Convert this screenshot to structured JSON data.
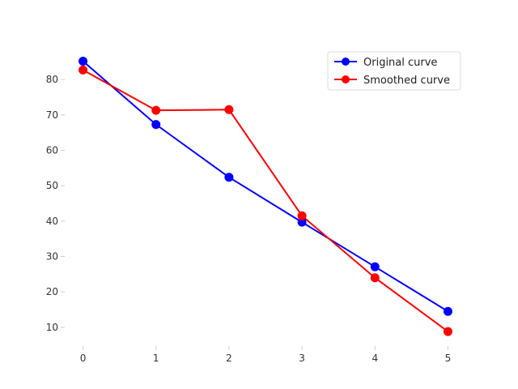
{
  "chart_data": {
    "type": "line",
    "x": [
      0,
      1,
      2,
      3,
      4,
      5
    ],
    "series": [
      {
        "name": "Original curve",
        "color": "#0000ff",
        "values": [
          85.2,
          67.3,
          52.4,
          39.7,
          27.1,
          14.5
        ]
      },
      {
        "name": "Smoothed curve",
        "color": "#ff0000",
        "values": [
          82.7,
          71.3,
          71.5,
          41.5,
          24.0,
          8.8
        ]
      }
    ],
    "xticks": [
      "0",
      "1",
      "2",
      "3",
      "4",
      "5"
    ],
    "yticks": [
      "10",
      "20",
      "30",
      "40",
      "50",
      "60",
      "70",
      "80"
    ],
    "xlim": [
      -0.25,
      5.25
    ],
    "ylim": [
      4.7,
      89.2
    ],
    "grid": false,
    "legend_position": "top-right"
  }
}
